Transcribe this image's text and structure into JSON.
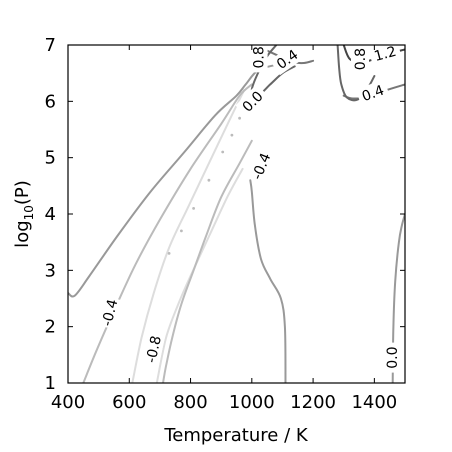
{
  "chart_data": {
    "type": "contour",
    "xlabel": "Temperature / K",
    "ylabel_base": "log",
    "ylabel_sub": "10",
    "ylabel_arg": "(P)",
    "xlim": [
      400,
      1500
    ],
    "ylim": [
      1,
      7
    ],
    "xticks": [
      400,
      600,
      800,
      1000,
      1200,
      1400
    ],
    "yticks": [
      1,
      2,
      3,
      4,
      5,
      6,
      7
    ],
    "levels": [
      {
        "value": -0.8,
        "color": "#dddddd",
        "label": "-0.8",
        "label_at": [
          678,
          1.6
        ],
        "label_rotation": -78,
        "paths": [
          [
            [
              610,
              1.0
            ],
            [
              640,
              1.8
            ],
            [
              680,
              2.6
            ],
            [
              730,
              3.4
            ],
            [
              790,
              4.1
            ],
            [
              860,
              4.9
            ],
            [
              930,
              5.7
            ],
            [
              975,
              6.2
            ]
          ],
          [
            [
              970,
              4.8
            ],
            [
              920,
              4.3
            ],
            [
              860,
              3.6
            ],
            [
              800,
              2.9
            ],
            [
              760,
              2.4
            ],
            [
              720,
              1.8
            ],
            [
              690,
              1.0
            ]
          ]
        ]
      },
      {
        "value": -0.4,
        "color": "#bbbbbb",
        "label": "-0.4",
        "label_at": [
          535,
          2.25
        ],
        "label_rotation": -76,
        "paths": [
          [
            [
              450,
              1.0
            ],
            [
              495,
              1.6
            ],
            [
              560,
              2.4
            ],
            [
              620,
              3.1
            ],
            [
              700,
              3.9
            ],
            [
              800,
              4.8
            ],
            [
              900,
              5.6
            ],
            [
              960,
              6.1
            ],
            [
              1000,
              6.3
            ]
          ],
          [
            [
              1000,
              5.3
            ],
            [
              960,
              4.9
            ],
            [
              900,
              4.3
            ],
            [
              850,
              3.6
            ],
            [
              810,
              3.0
            ],
            [
              770,
              2.4
            ],
            [
              740,
              1.8
            ],
            [
              720,
              1.3
            ],
            [
              710,
              1.0
            ]
          ]
        ]
      },
      {
        "value": -0.4,
        "color": "#bbbbbb",
        "label": "-0.4",
        "label_at": [
          1030,
          4.85
        ],
        "label_rotation": -68,
        "paths": []
      },
      {
        "value": 0.0,
        "color": "#999999",
        "label": "0.0",
        "label_at": [
          1002,
          6.0
        ],
        "label_rotation": -45,
        "paths": [
          [
            [
              400,
              2.6
            ],
            [
              422,
              2.55
            ],
            [
              470,
              2.9
            ],
            [
              560,
              3.6
            ],
            [
              670,
              4.4
            ],
            [
              780,
              5.1
            ],
            [
              880,
              5.75
            ],
            [
              950,
              6.1
            ],
            [
              980,
              6.3
            ],
            [
              1020,
              6.55
            ],
            [
              1080,
              6.65
            ]
          ],
          [
            [
              1110,
              1.0
            ],
            [
              1108,
              2.0
            ],
            [
              1095,
              2.5
            ],
            [
              1060,
              2.85
            ],
            [
              1030,
              3.2
            ],
            [
              1010,
              3.8
            ],
            [
              1000,
              4.4
            ],
            [
              995,
              4.6
            ]
          ],
          [
            [
              1460,
              1.0
            ],
            [
              1462,
              2.0
            ],
            [
              1468,
              2.8
            ],
            [
              1480,
              3.5
            ],
            [
              1490,
              3.8
            ],
            [
              1500,
              4.0
            ]
          ]
        ]
      },
      {
        "value": 0.0,
        "color": "#999999",
        "label": "0.0",
        "label_at": [
          1458,
          1.45
        ],
        "label_rotation": -90,
        "paths": []
      },
      {
        "value": 0.4,
        "color": "#777777",
        "label": "0.4",
        "label_at": [
          1115,
          6.75
        ],
        "label_rotation": -35,
        "paths": [
          [
            [
              1050,
              6.9
            ],
            [
              1090,
              6.8
            ],
            [
              1130,
              6.7
            ],
            [
              1170,
              6.68
            ],
            [
              1200,
              6.72
            ]
          ],
          [
            [
              1500,
              6.3
            ],
            [
              1440,
              6.2
            ],
            [
              1380,
              6.08
            ],
            [
              1330,
              6.05
            ],
            [
              1300,
              6.1
            ]
          ]
        ]
      },
      {
        "value": 0.4,
        "color": "#777777",
        "label": "0.4",
        "label_at": [
          1395,
          6.15
        ],
        "label_rotation": -20,
        "paths": []
      },
      {
        "value": 0.8,
        "color": "#666666",
        "label": "0.8",
        "label_at": [
          1022,
          6.78
        ],
        "label_rotation": -90,
        "paths": [
          [
            [
              1080,
              7.0
            ],
            [
              1050,
              6.8
            ],
            [
              1020,
              6.5
            ],
            [
              1000,
              6.2
            ],
            [
              1020,
              6.1
            ],
            [
              1060,
              6.3
            ],
            [
              1100,
              6.5
            ],
            [
              1140,
              6.62
            ]
          ],
          [
            [
              1280,
              7.0
            ],
            [
              1285,
              6.6
            ],
            [
              1292,
              6.3
            ],
            [
              1310,
              6.07
            ],
            [
              1345,
              6.03
            ],
            [
              1380,
              6.25
            ],
            [
              1400,
              6.45
            ]
          ]
        ]
      },
      {
        "value": 0.8,
        "color": "#666666",
        "label": "0.8",
        "label_at": [
          1353,
          6.75
        ],
        "label_rotation": -90,
        "paths": []
      },
      {
        "value": 1.2,
        "color": "#444444",
        "label": "1.2",
        "label_at": [
          1435,
          6.85
        ],
        "label_rotation": -15,
        "paths": [
          [
            [
              1300,
              7.0
            ],
            [
              1320,
              6.75
            ],
            [
              1360,
              6.7
            ],
            [
              1400,
              6.75
            ],
            [
              1450,
              6.85
            ],
            [
              1500,
              6.92
            ]
          ]
        ]
      }
    ],
    "ridge": {
      "color": "#bbbbbb",
      "points": [
        [
          730,
          3.3
        ],
        [
          770,
          3.7
        ],
        [
          810,
          4.1
        ],
        [
          860,
          4.6
        ],
        [
          905,
          5.1
        ],
        [
          935,
          5.4
        ],
        [
          960,
          5.7
        ],
        [
          980,
          5.9
        ]
      ]
    },
    "grid": false,
    "legend": "none"
  }
}
